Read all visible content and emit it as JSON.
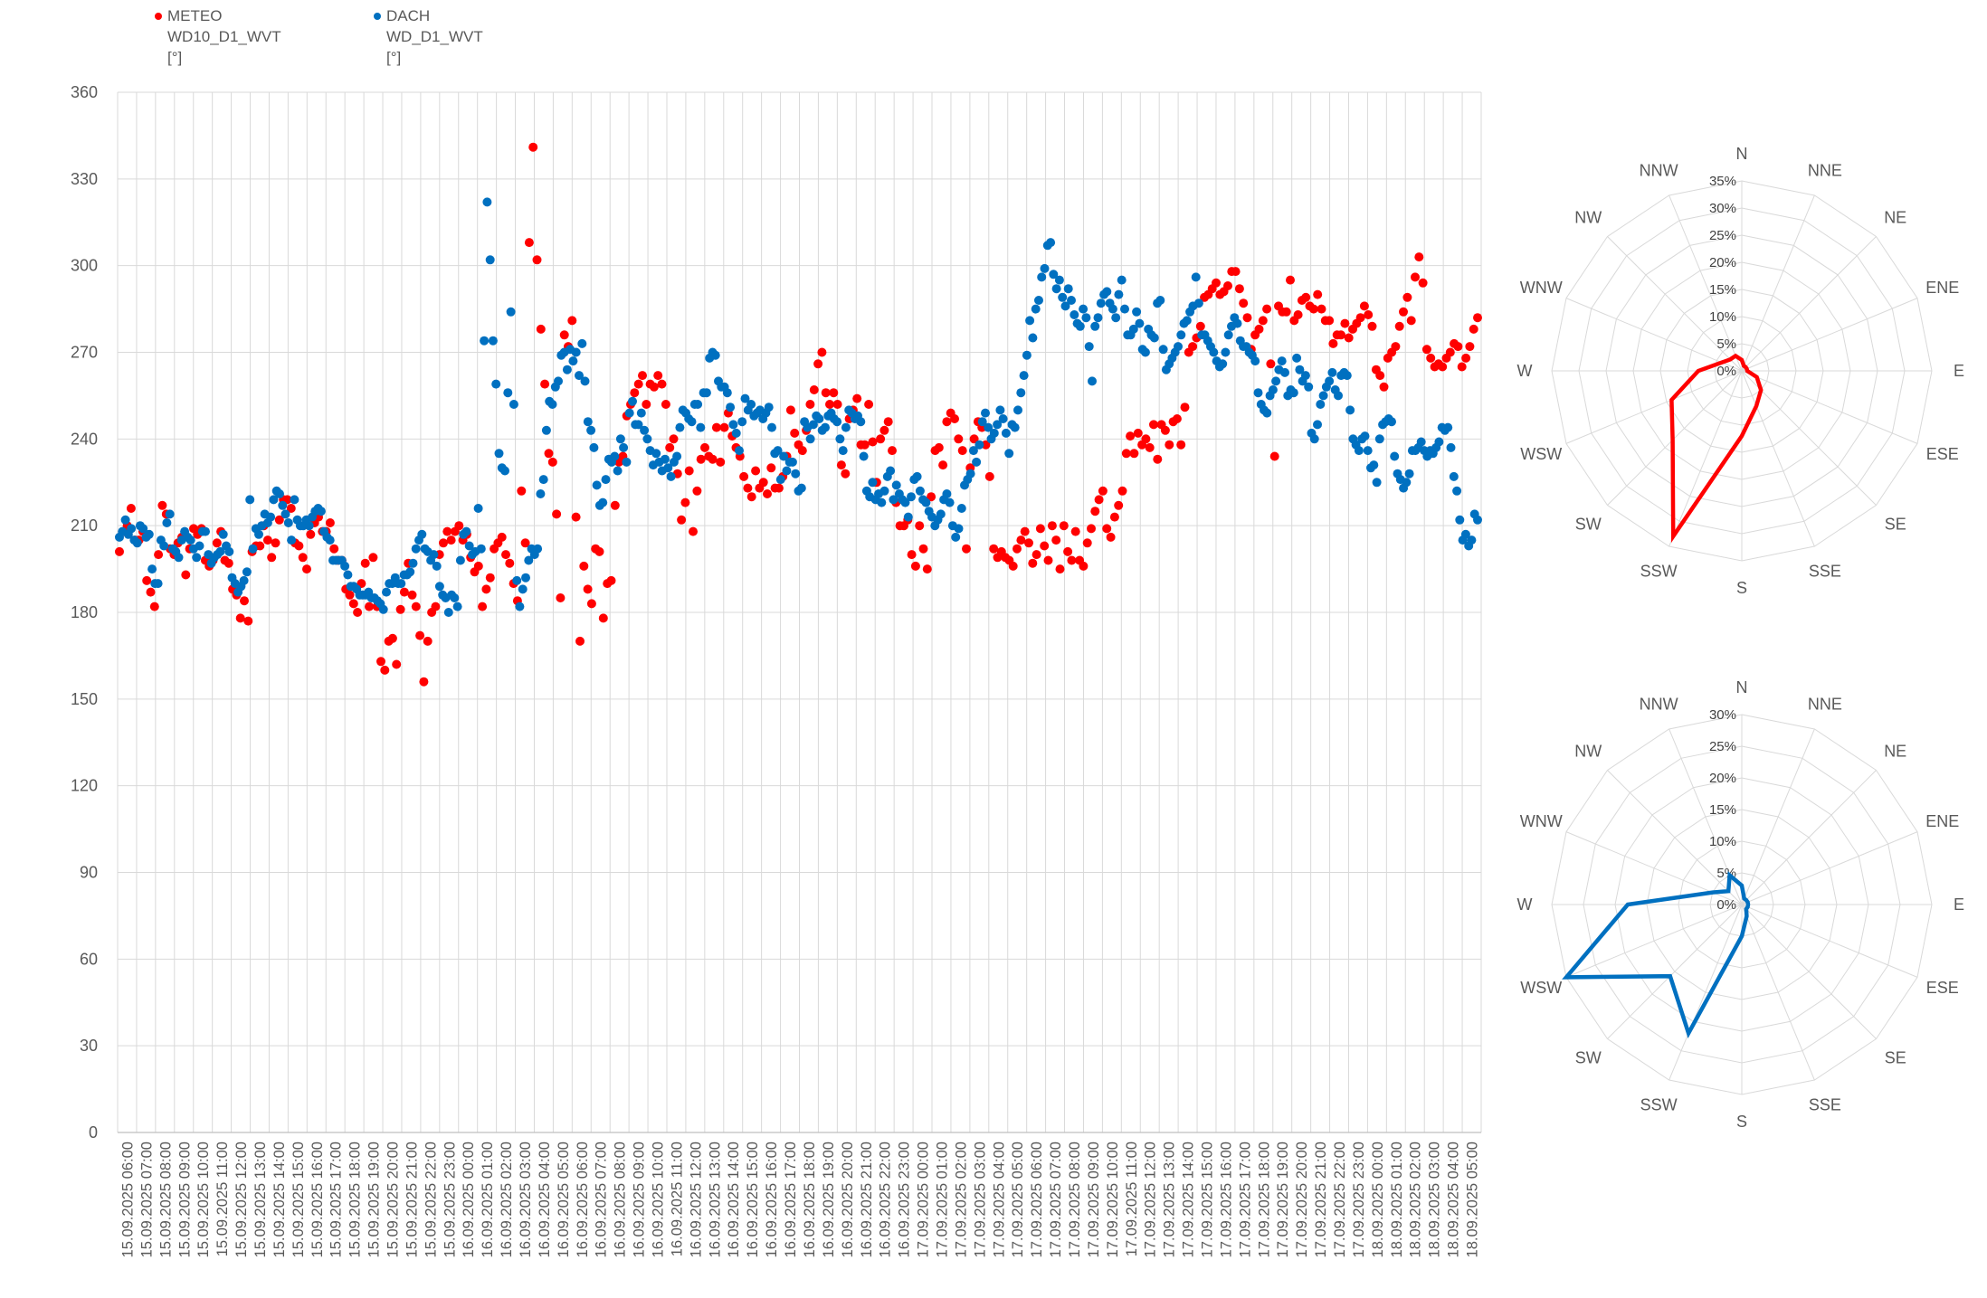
{
  "legend": [
    {
      "label": "METEO",
      "field": "WD10_D1_WVT",
      "unit": "[°]",
      "color": "#ff0000"
    },
    {
      "label": "DACH",
      "field": "WD_D1_WVT",
      "unit": "[°]",
      "color": "#0070c0"
    }
  ],
  "chart_data": [
    {
      "type": "scatter",
      "ylim": [
        0,
        360
      ],
      "yticks": [
        0,
        30,
        60,
        90,
        120,
        150,
        180,
        210,
        240,
        270,
        300,
        330,
        360
      ],
      "grid": true,
      "legend_position": "top-left",
      "start": "15.09.2025 06:00",
      "step_hours": 0.1667,
      "x_labels": [
        "15.09.2025 06:00",
        "15.09.2025 07:00",
        "15.09.2025 08:00",
        "15.09.2025 09:00",
        "15.09.2025 10:00",
        "15.09.2025 11:00",
        "15.09.2025 12:00",
        "15.09.2025 13:00",
        "15.09.2025 14:00",
        "15.09.2025 15:00",
        "15.09.2025 16:00",
        "15.09.2025 17:00",
        "15.09.2025 18:00",
        "15.09.2025 19:00",
        "15.09.2025 20:00",
        "15.09.2025 21:00",
        "15.09.2025 22:00",
        "15.09.2025 23:00",
        "16.09.2025 00:00",
        "16.09.2025 01:00",
        "16.09.2025 02:00",
        "16.09.2025 03:00",
        "16.09.2025 04:00",
        "16.09.2025 05:00",
        "16.09.2025 06:00",
        "16.09.2025 07:00",
        "16.09.2025 08:00",
        "16.09.2025 09:00",
        "16.09.2025 10:00",
        "16.09.2025 11:00",
        "16.09.2025 12:00",
        "16.09.2025 13:00",
        "16.09.2025 14:00",
        "16.09.2025 15:00",
        "16.09.2025 16:00",
        "16.09.2025 17:00",
        "16.09.2025 18:00",
        "16.09.2025 19:00",
        "16.09.2025 20:00",
        "16.09.2025 21:00",
        "16.09.2025 22:00",
        "16.09.2025 23:00",
        "17.09.2025 00:00",
        "17.09.2025 01:00",
        "17.09.2025 02:00",
        "17.09.2025 03:00",
        "17.09.2025 04:00",
        "17.09.2025 05:00",
        "17.09.2025 06:00",
        "17.09.2025 07:00",
        "17.09.2025 08:00",
        "17.09.2025 09:00",
        "17.09.2025 10:00",
        "17.09.2025 11:00",
        "17.09.2025 12:00",
        "17.09.2025 13:00",
        "17.09.2025 14:00",
        "17.09.2025 15:00",
        "17.09.2025 16:00",
        "17.09.2025 17:00",
        "17.09.2025 18:00",
        "17.09.2025 19:00",
        "17.09.2025 20:00",
        "17.09.2025 21:00",
        "17.09.2025 22:00",
        "17.09.2025 23:00",
        "18.09.2025 00:00",
        "18.09.2025 01:00",
        "18.09.2025 02:00",
        "18.09.2025 03:00",
        "18.09.2025 04:00",
        "18.09.2025 05:00"
      ],
      "series": [
        {
          "name": "METEO WD10_D1_WVT [°]",
          "color": "#ff0000",
          "values": [
            201,
            208,
            210,
            216,
            205,
            205,
            208,
            191,
            187,
            182,
            200,
            217,
            214,
            202,
            200,
            204,
            206,
            193,
            202,
            209,
            207,
            209,
            198,
            196,
            198,
            204,
            208,
            198,
            197,
            188,
            186,
            178,
            184,
            177,
            201,
            203,
            203,
            210,
            205,
            199,
            204,
            212,
            219,
            219,
            216,
            204,
            203,
            199,
            195,
            207,
            211,
            213,
            208,
            208,
            211,
            202,
            198,
            198,
            188,
            186,
            183,
            180,
            190,
            197,
            182,
            199,
            182,
            163,
            160,
            170,
            171,
            162,
            181,
            187,
            197,
            186,
            182,
            172,
            156,
            170,
            180,
            182,
            200,
            204,
            208,
            205,
            208,
            210,
            205,
            207,
            199,
            194,
            196,
            182,
            188,
            192,
            202,
            204,
            206,
            200,
            197,
            190,
            184,
            222,
            204,
            308,
            341,
            302,
            278,
            259,
            235,
            232,
            214,
            185,
            276,
            272,
            281,
            213,
            170,
            196,
            188,
            183,
            202,
            201,
            178,
            190,
            191,
            217,
            232,
            234,
            248,
            252,
            256,
            259,
            262,
            252,
            259,
            258,
            262,
            259,
            252,
            237,
            240,
            228,
            212,
            218,
            229,
            208,
            222,
            233,
            237,
            234,
            233,
            244,
            232,
            244,
            249,
            241,
            237,
            234,
            227,
            223,
            220,
            229,
            223,
            225,
            221,
            230,
            223,
            223,
            227,
            234,
            250,
            242,
            238,
            236,
            243,
            252,
            257,
            266,
            270,
            256,
            252,
            256,
            252,
            231,
            228,
            247,
            250,
            254,
            238,
            238,
            252,
            239,
            225,
            240,
            243,
            246,
            236,
            218,
            210,
            210,
            212,
            200,
            196,
            210,
            202,
            195,
            220,
            236,
            237,
            231,
            246,
            249,
            247,
            240,
            236,
            202,
            230,
            240,
            246,
            244,
            238,
            227,
            202,
            199,
            201,
            199,
            198,
            196,
            202,
            205,
            208,
            204,
            197,
            200,
            209,
            203,
            198,
            210,
            205,
            195,
            210,
            201,
            198,
            208,
            198,
            196,
            204,
            209,
            215,
            219,
            222,
            209,
            206,
            213,
            217,
            222,
            235,
            241,
            235,
            242,
            238,
            240,
            237,
            245,
            233,
            245,
            243,
            238,
            246,
            247,
            238,
            251,
            270,
            272,
            275,
            279,
            289,
            290,
            292,
            294,
            290,
            291,
            293,
            298,
            298,
            292,
            287,
            282,
            271,
            276,
            278,
            281,
            285,
            266,
            234,
            286,
            284,
            284,
            295,
            281,
            283,
            288,
            289,
            286,
            285,
            290,
            285,
            281,
            281,
            273,
            276,
            276,
            280,
            275,
            278,
            280,
            282,
            286,
            283,
            279,
            264,
            262,
            258,
            268,
            270,
            272,
            279,
            284,
            289,
            281,
            296,
            303,
            294,
            271,
            268,
            265,
            266,
            265,
            268,
            270,
            273,
            272,
            265,
            268,
            272,
            278,
            282
          ],
          "note": ""
        },
        {
          "name": "DACH WD_D1_WVT [°]",
          "color": "#0070c0",
          "values": [
            206,
            208,
            212,
            207,
            209,
            205,
            204,
            210,
            209,
            206,
            207,
            195,
            190,
            190,
            205,
            203,
            211,
            214,
            202,
            201,
            199,
            205,
            208,
            206,
            205,
            202,
            199,
            203,
            208,
            208,
            200,
            197,
            199,
            200,
            201,
            207,
            203,
            201,
            192,
            190,
            187,
            189,
            191,
            194,
            219,
            202,
            209,
            207,
            210,
            214,
            211,
            213,
            219,
            222,
            221,
            217,
            214,
            211,
            205,
            219,
            212,
            210,
            210,
            212,
            210,
            213,
            215,
            216,
            215,
            208,
            206,
            205,
            198,
            198,
            198,
            198,
            196,
            193,
            189,
            189,
            188,
            186,
            186,
            186,
            187,
            185,
            185,
            184,
            183,
            181,
            187,
            190,
            190,
            192,
            190,
            190,
            193,
            193,
            194,
            197,
            202,
            205,
            207,
            202,
            201,
            198,
            200,
            196,
            189,
            186,
            185,
            180,
            186,
            185,
            182,
            198,
            207,
            208,
            203,
            200,
            201,
            216,
            202,
            274,
            322,
            302,
            274,
            259,
            235,
            230,
            229,
            256,
            284,
            252,
            191,
            182,
            188,
            192,
            198,
            202,
            200,
            202,
            221,
            226,
            243,
            253,
            252,
            258,
            260,
            269,
            270,
            264,
            271,
            267,
            270,
            262,
            273,
            260,
            246,
            243,
            237,
            224,
            217,
            218,
            226,
            233,
            232,
            234,
            229,
            240,
            237,
            232,
            249,
            253,
            245,
            245,
            249,
            243,
            240,
            236,
            231,
            235,
            232,
            229,
            233,
            230,
            227,
            232,
            234,
            244,
            250,
            249,
            247,
            246,
            252,
            252,
            244,
            256,
            256,
            268,
            270,
            269,
            260,
            258,
            258,
            256,
            251,
            245,
            242,
            236,
            246,
            254,
            250,
            252,
            248,
            249,
            250,
            247,
            249,
            251,
            244,
            235,
            236,
            226,
            234,
            229,
            232,
            232,
            228,
            222,
            223,
            246,
            244,
            240,
            245,
            248,
            247,
            243,
            244,
            248,
            249,
            247,
            246,
            240,
            236,
            244,
            250,
            249,
            247,
            248,
            246,
            234,
            222,
            220,
            225,
            219,
            221,
            218,
            222,
            227,
            229,
            219,
            224,
            221,
            219,
            218,
            213,
            220,
            226,
            227,
            222,
            219,
            218,
            215,
            213,
            210,
            212,
            214,
            219,
            221,
            218,
            210,
            206,
            209,
            216,
            224,
            226,
            228,
            236,
            232,
            238,
            246,
            249,
            244,
            240,
            242,
            245,
            250,
            247,
            242,
            235,
            245,
            244,
            250,
            256,
            262,
            269,
            281,
            275,
            285,
            288,
            296,
            299,
            307,
            308,
            297,
            292,
            295,
            289,
            286,
            292,
            288,
            283,
            280,
            279,
            285,
            282,
            272,
            260,
            279,
            282,
            287,
            290,
            291,
            287,
            285,
            282,
            290,
            295,
            285,
            276,
            276,
            278,
            284,
            280,
            271,
            270,
            278,
            276,
            275,
            287,
            288,
            271,
            264,
            266,
            268,
            270,
            272,
            276,
            280,
            281,
            284,
            286,
            296,
            287,
            276,
            276,
            274,
            272,
            270,
            267,
            265,
            266,
            270,
            276,
            279,
            282,
            280,
            274,
            272,
            272,
            270,
            269,
            267,
            256,
            252,
            250,
            249,
            255,
            257,
            260,
            264,
            267,
            263,
            255,
            257,
            256,
            268,
            264,
            260,
            262,
            258,
            242,
            240,
            245,
            252,
            255,
            258,
            260,
            263,
            257,
            255,
            262,
            263,
            262,
            250,
            240,
            238,
            236,
            240,
            241,
            236,
            230,
            231,
            225,
            240,
            245,
            246,
            247,
            246,
            234,
            228,
            226,
            223,
            225,
            228,
            236,
            236,
            237,
            239,
            236,
            234,
            236,
            235,
            237,
            239,
            244,
            243,
            244,
            237,
            227,
            222,
            212,
            205,
            207,
            203,
            205,
            214,
            212
          ]
        }
      ]
    },
    {
      "type": "radar",
      "title": "",
      "directions": [
        "N",
        "NNE",
        "NE",
        "ENE",
        "E",
        "ESE",
        "SE",
        "SSE",
        "S",
        "SSW",
        "SW",
        "WSW",
        "W",
        "WNW",
        "NW",
        "NNW"
      ],
      "rticks": [
        "0%",
        "5%",
        "10%",
        "15%",
        "20%",
        "25%",
        "30%",
        "35%"
      ],
      "rmax": 35,
      "series": [
        {
          "name": "METEO",
          "color": "#ff0000",
          "values": [
            2,
            1,
            1,
            1,
            1,
            3,
            5,
            7,
            12,
            33,
            18,
            14,
            8,
            4,
            3,
            3
          ]
        }
      ]
    },
    {
      "type": "radar",
      "title": "",
      "directions": [
        "N",
        "NNE",
        "NE",
        "ENE",
        "E",
        "ESE",
        "SE",
        "SSE",
        "S",
        "SSW",
        "SW",
        "WSW",
        "W",
        "WNW",
        "NW",
        "NNW"
      ],
      "rticks": [
        "0%",
        "5%",
        "10%",
        "15%",
        "20%",
        "25%",
        "30%"
      ],
      "rmax": 30,
      "series": [
        {
          "name": "DACH",
          "color": "#0070c0",
          "values": [
            3,
            1,
            1,
            1,
            1,
            1,
            1,
            2,
            5,
            22,
            16,
            30,
            18,
            5,
            3,
            5
          ]
        }
      ]
    }
  ]
}
